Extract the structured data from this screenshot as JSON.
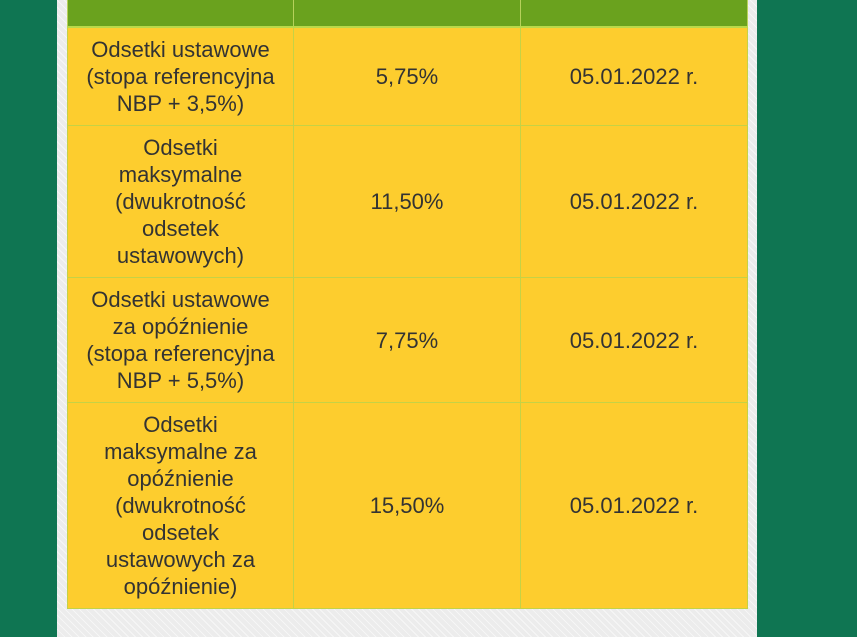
{
  "table": {
    "header": [
      "",
      "",
      ""
    ],
    "rows": [
      {
        "name": "Odsetki ustawowe (stopa referencyjna NBP + 3,5%)",
        "rate": "5,75%",
        "date": "05.01.2022 r."
      },
      {
        "name": "Odsetki maksymalne (dwukrotność odsetek ustawowych)",
        "rate": "11,50%",
        "date": "05.01.2022 r."
      },
      {
        "name": "Odsetki ustawowe za opóźnienie (stopa referencyjna NBP + 5,5%)",
        "rate": "7,75%",
        "date": "05.01.2022 r."
      },
      {
        "name": "Odsetki maksymalne za opóźnienie (dwukrotność odsetek ustawowych za opóźnienie)",
        "rate": "15,50%",
        "date": "05.01.2022 r."
      }
    ]
  },
  "colors": {
    "background": "#0f7552",
    "header": "#6aa21e",
    "cell": "#fdcd2e",
    "text": "#333333"
  }
}
